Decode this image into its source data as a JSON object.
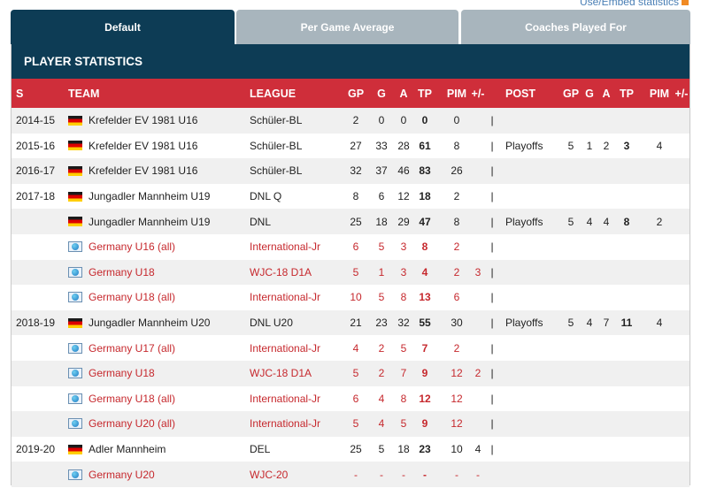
{
  "embed_link": "Use/Embed statistics",
  "tabs": [
    {
      "label": "Default",
      "active": true
    },
    {
      "label": "Per Game Average",
      "active": false
    },
    {
      "label": "Coaches Played For",
      "active": false
    }
  ],
  "title": "PLAYER STATISTICS",
  "headers": {
    "s": "S",
    "team": "TEAM",
    "league": "LEAGUE",
    "gp": "GP",
    "g": "G",
    "a": "A",
    "tp": "TP",
    "pim": "PIM",
    "pm": "+/-",
    "sep": "",
    "post": "POST",
    "pgp": "GP",
    "pg": "G",
    "pa": "A",
    "ptp": "TP",
    "ppim": "PIM",
    "ppm": "+/-"
  },
  "colors": {
    "tab_active": "#0d3c55",
    "tab_inactive": "#a8b5bd",
    "header_red": "#cf2e3a",
    "intl_text": "#c6282d"
  },
  "rows": [
    {
      "s": "2014-15",
      "team": "Krefelder EV 1981 U16",
      "league": "Schüler-BL",
      "gp": "2",
      "g": "0",
      "a": "0",
      "tp": "0",
      "pim": "0",
      "pm": "",
      "sep": "|",
      "post": "",
      "pgp": "",
      "pg": "",
      "pa": "",
      "ptp": "",
      "ppim": "",
      "ppm": "",
      "intl": false,
      "flag": "germany-flag-icon"
    },
    {
      "s": "2015-16",
      "team": "Krefelder EV 1981 U16",
      "league": "Schüler-BL",
      "gp": "27",
      "g": "33",
      "a": "28",
      "tp": "61",
      "pim": "8",
      "pm": "",
      "sep": "|",
      "post": "Playoffs",
      "pgp": "5",
      "pg": "1",
      "pa": "2",
      "ptp": "3",
      "ppim": "4",
      "ppm": "",
      "intl": false,
      "flag": "germany-flag-icon"
    },
    {
      "s": "2016-17",
      "team": "Krefelder EV 1981 U16",
      "league": "Schüler-BL",
      "gp": "32",
      "g": "37",
      "a": "46",
      "tp": "83",
      "pim": "26",
      "pm": "",
      "sep": "|",
      "post": "",
      "pgp": "",
      "pg": "",
      "pa": "",
      "ptp": "",
      "ppim": "",
      "ppm": "",
      "intl": false,
      "flag": "germany-flag-icon"
    },
    {
      "s": "2017-18",
      "team": "Jungadler Mannheim U19",
      "league": "DNL Q",
      "gp": "8",
      "g": "6",
      "a": "12",
      "tp": "18",
      "pim": "2",
      "pm": "",
      "sep": "|",
      "post": "",
      "pgp": "",
      "pg": "",
      "pa": "",
      "ptp": "",
      "ppim": "",
      "ppm": "",
      "intl": false,
      "flag": "germany-flag-icon"
    },
    {
      "s": "",
      "team": "Jungadler Mannheim U19",
      "league": "DNL",
      "gp": "25",
      "g": "18",
      "a": "29",
      "tp": "47",
      "pim": "8",
      "pm": "",
      "sep": "|",
      "post": "Playoffs",
      "pgp": "5",
      "pg": "4",
      "pa": "4",
      "ptp": "8",
      "ppim": "2",
      "ppm": "",
      "intl": false,
      "flag": "germany-flag-icon"
    },
    {
      "s": "",
      "team": "Germany U16 (all)",
      "league": "International-Jr",
      "gp": "6",
      "g": "5",
      "a": "3",
      "tp": "8",
      "pim": "2",
      "pm": "",
      "sep": "|",
      "post": "",
      "pgp": "",
      "pg": "",
      "pa": "",
      "ptp": "",
      "ppim": "",
      "ppm": "",
      "intl": true,
      "flag": "globe-icon"
    },
    {
      "s": "",
      "team": "Germany U18",
      "league": "WJC-18 D1A",
      "gp": "5",
      "g": "1",
      "a": "3",
      "tp": "4",
      "pim": "2",
      "pm": "3",
      "sep": "|",
      "post": "",
      "pgp": "",
      "pg": "",
      "pa": "",
      "ptp": "",
      "ppim": "",
      "ppm": "",
      "intl": true,
      "flag": "globe-icon"
    },
    {
      "s": "",
      "team": "Germany U18 (all)",
      "league": "International-Jr",
      "gp": "10",
      "g": "5",
      "a": "8",
      "tp": "13",
      "pim": "6",
      "pm": "",
      "sep": "|",
      "post": "",
      "pgp": "",
      "pg": "",
      "pa": "",
      "ptp": "",
      "ppim": "",
      "ppm": "",
      "intl": true,
      "flag": "globe-icon"
    },
    {
      "s": "2018-19",
      "team": "Jungadler Mannheim U20",
      "league": "DNL U20",
      "gp": "21",
      "g": "23",
      "a": "32",
      "tp": "55",
      "pim": "30",
      "pm": "",
      "sep": "|",
      "post": "Playoffs",
      "pgp": "5",
      "pg": "4",
      "pa": "7",
      "ptp": "11",
      "ppim": "4",
      "ppm": "",
      "intl": false,
      "flag": "germany-flag-icon"
    },
    {
      "s": "",
      "team": "Germany U17 (all)",
      "league": "International-Jr",
      "gp": "4",
      "g": "2",
      "a": "5",
      "tp": "7",
      "pim": "2",
      "pm": "",
      "sep": "|",
      "post": "",
      "pgp": "",
      "pg": "",
      "pa": "",
      "ptp": "",
      "ppim": "",
      "ppm": "",
      "intl": true,
      "flag": "globe-icon"
    },
    {
      "s": "",
      "team": "Germany U18",
      "league": "WJC-18 D1A",
      "gp": "5",
      "g": "2",
      "a": "7",
      "tp": "9",
      "pim": "12",
      "pm": "2",
      "sep": "|",
      "post": "",
      "pgp": "",
      "pg": "",
      "pa": "",
      "ptp": "",
      "ppim": "",
      "ppm": "",
      "intl": true,
      "flag": "globe-icon"
    },
    {
      "s": "",
      "team": "Germany U18 (all)",
      "league": "International-Jr",
      "gp": "6",
      "g": "4",
      "a": "8",
      "tp": "12",
      "pim": "12",
      "pm": "",
      "sep": "|",
      "post": "",
      "pgp": "",
      "pg": "",
      "pa": "",
      "ptp": "",
      "ppim": "",
      "ppm": "",
      "intl": true,
      "flag": "globe-icon"
    },
    {
      "s": "",
      "team": "Germany U20 (all)",
      "league": "International-Jr",
      "gp": "5",
      "g": "4",
      "a": "5",
      "tp": "9",
      "pim": "12",
      "pm": "",
      "sep": "|",
      "post": "",
      "pgp": "",
      "pg": "",
      "pa": "",
      "ptp": "",
      "ppim": "",
      "ppm": "",
      "intl": true,
      "flag": "globe-icon"
    },
    {
      "s": "2019-20",
      "team": "Adler Mannheim",
      "league": "DEL",
      "gp": "25",
      "g": "5",
      "a": "18",
      "tp": "23",
      "pim": "10",
      "pm": "4",
      "sep": "|",
      "post": "",
      "pgp": "",
      "pg": "",
      "pa": "",
      "ptp": "",
      "ppim": "",
      "ppm": "",
      "intl": false,
      "flag": "germany-flag-icon"
    },
    {
      "s": "",
      "team": "Germany U20",
      "league": "WJC-20",
      "gp": "-",
      "g": "-",
      "a": "-",
      "tp": "-",
      "pim": "-",
      "pm": "-",
      "sep": "",
      "post": "",
      "pgp": "",
      "pg": "",
      "pa": "",
      "ptp": "",
      "ppim": "",
      "ppm": "",
      "intl": true,
      "flag": "globe-icon"
    }
  ]
}
